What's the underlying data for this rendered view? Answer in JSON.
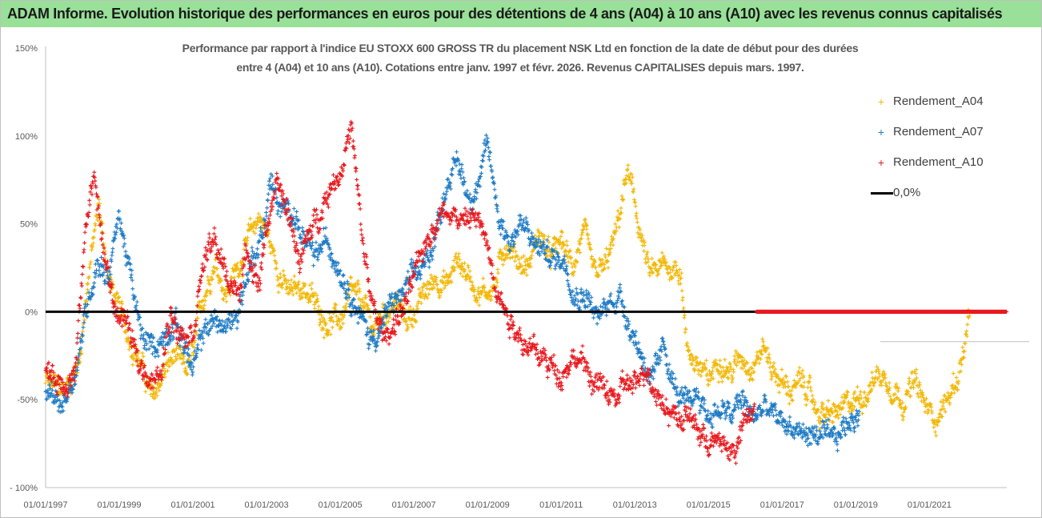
{
  "header": {
    "title": "ADAM Informe. Evolution historique des performances en euros pour des détentions de 4 ans (A04) à 10 ans (A10) avec les revenus connus capitalisés",
    "background": "#99e099"
  },
  "chart_data": {
    "type": "scatter",
    "title_line1": "Performance par rapport à l'indice EU STOXX 600 GROSS TR  du placement NSK Ltd en fonction de la date de début pour des durées",
    "title_line2": "entre 4 (A04) et 10 ans (A10). Cotations entre janv. 1997 et févr. 2026. Revenus CAPITALISES depuis mars. 1997.",
    "y_ticks": [
      "150%",
      "100%",
      "50%",
      "0%",
      "-50%",
      "- 100%"
    ],
    "y_tick_values": [
      150,
      100,
      50,
      0,
      -50,
      -100
    ],
    "ylim": [
      -100,
      150
    ],
    "x_ticks": [
      "01/01/1997",
      "01/01/1999",
      "01/01/2001",
      "01/01/2003",
      "01/01/2005",
      "01/01/2007",
      "01/01/2009",
      "01/01/2011",
      "01/01/2013",
      "01/01/2015",
      "01/01/2017",
      "01/01/2019",
      "01/01/2021"
    ],
    "x_tick_values": [
      1997,
      1999,
      2001,
      2003,
      2005,
      2007,
      2009,
      2011,
      2013,
      2015,
      2017,
      2019,
      2021
    ],
    "xlim": [
      1997,
      2023.1
    ],
    "legend_position": "top-right",
    "series": [
      {
        "name": "Rendement_A04",
        "color": "#f2b807",
        "start": 1997.0,
        "end": 2022.1,
        "keypoints": [
          [
            1997.0,
            -40
          ],
          [
            1997.5,
            -45
          ],
          [
            1997.9,
            -30
          ],
          [
            1998.15,
            20
          ],
          [
            1998.45,
            60
          ],
          [
            1998.7,
            20
          ],
          [
            1999.0,
            0
          ],
          [
            1999.3,
            -15
          ],
          [
            1999.6,
            -30
          ],
          [
            1999.9,
            -50
          ],
          [
            2000.2,
            -35
          ],
          [
            2000.5,
            -25
          ],
          [
            2000.8,
            -35
          ],
          [
            2001.0,
            -25
          ],
          [
            2001.3,
            10
          ],
          [
            2001.6,
            30
          ],
          [
            2001.9,
            10
          ],
          [
            2002.2,
            25
          ],
          [
            2002.5,
            40
          ],
          [
            2002.8,
            55
          ],
          [
            2003.0,
            45
          ],
          [
            2003.3,
            25
          ],
          [
            2003.6,
            10
          ],
          [
            2004.0,
            15
          ],
          [
            2004.3,
            5
          ],
          [
            2004.6,
            -5
          ],
          [
            2005.0,
            -5
          ],
          [
            2005.3,
            10
          ],
          [
            2005.6,
            5
          ],
          [
            2005.9,
            -10
          ],
          [
            2006.2,
            0
          ],
          [
            2006.5,
            5
          ],
          [
            2006.8,
            -5
          ],
          [
            2007.0,
            0
          ],
          [
            2007.3,
            10
          ],
          [
            2007.6,
            20
          ],
          [
            2007.9,
            15
          ],
          [
            2008.2,
            30
          ],
          [
            2008.5,
            20
          ],
          [
            2008.8,
            10
          ],
          [
            2009.2,
            15
          ],
          [
            2009.5,
            40
          ],
          [
            2009.8,
            30
          ],
          [
            2010.1,
            25
          ],
          [
            2010.4,
            45
          ],
          [
            2010.7,
            30
          ],
          [
            2011.0,
            40
          ],
          [
            2011.3,
            25
          ],
          [
            2011.6,
            45
          ],
          [
            2011.9,
            20
          ],
          [
            2012.2,
            25
          ],
          [
            2012.5,
            45
          ],
          [
            2012.8,
            80
          ],
          [
            2013.0,
            60
          ],
          [
            2013.2,
            40
          ],
          [
            2013.4,
            20
          ],
          [
            2013.7,
            25
          ],
          [
            2014.0,
            25
          ],
          [
            2014.25,
            25
          ],
          [
            2014.4,
            -20
          ],
          [
            2014.7,
            -30
          ],
          [
            2015.0,
            -40
          ],
          [
            2015.3,
            -25
          ],
          [
            2015.6,
            -35
          ],
          [
            2015.9,
            -25
          ],
          [
            2016.2,
            -30
          ],
          [
            2016.5,
            -20
          ],
          [
            2016.8,
            -35
          ],
          [
            2017.2,
            -45
          ],
          [
            2017.6,
            -40
          ],
          [
            2017.9,
            -55
          ],
          [
            2018.3,
            -60
          ],
          [
            2018.7,
            -55
          ],
          [
            2019.0,
            -50
          ],
          [
            2019.3,
            -45
          ],
          [
            2019.6,
            -35
          ],
          [
            2019.9,
            -40
          ],
          [
            2020.3,
            -50
          ],
          [
            2020.6,
            -40
          ],
          [
            2020.9,
            -55
          ],
          [
            2021.2,
            -60
          ],
          [
            2021.5,
            -50
          ],
          [
            2021.8,
            -35
          ],
          [
            2022.1,
            -5
          ]
        ]
      },
      {
        "name": "Rendement_A07",
        "color": "#1f7bc4",
        "start": 1997.0,
        "end": 2019.1,
        "keypoints": [
          [
            1997.0,
            -45
          ],
          [
            1997.4,
            -55
          ],
          [
            1997.8,
            -35
          ],
          [
            1998.1,
            0
          ],
          [
            1998.4,
            30
          ],
          [
            1998.7,
            20
          ],
          [
            1999.0,
            55
          ],
          [
            1999.3,
            20
          ],
          [
            1999.6,
            -15
          ],
          [
            1999.9,
            -20
          ],
          [
            2000.2,
            -15
          ],
          [
            2000.5,
            -5
          ],
          [
            2000.8,
            -20
          ],
          [
            2001.0,
            -35
          ],
          [
            2001.3,
            -10
          ],
          [
            2001.6,
            -5
          ],
          [
            2001.9,
            -10
          ],
          [
            2002.2,
            0
          ],
          [
            2002.6,
            30
          ],
          [
            2002.9,
            45
          ],
          [
            2003.1,
            75
          ],
          [
            2003.4,
            55
          ],
          [
            2003.7,
            60
          ],
          [
            2004.0,
            40
          ],
          [
            2004.3,
            30
          ],
          [
            2004.6,
            40
          ],
          [
            2004.9,
            30
          ],
          [
            2005.2,
            15
          ],
          [
            2005.5,
            0
          ],
          [
            2005.8,
            -15
          ],
          [
            2006.1,
            -10
          ],
          [
            2006.4,
            5
          ],
          [
            2006.7,
            10
          ],
          [
            2007.0,
            20
          ],
          [
            2007.3,
            25
          ],
          [
            2007.6,
            45
          ],
          [
            2007.9,
            75
          ],
          [
            2008.2,
            85
          ],
          [
            2008.5,
            65
          ],
          [
            2008.8,
            75
          ],
          [
            2009.0,
            95
          ],
          [
            2009.3,
            55
          ],
          [
            2009.6,
            40
          ],
          [
            2009.9,
            50
          ],
          [
            2010.2,
            40
          ],
          [
            2010.5,
            35
          ],
          [
            2010.8,
            30
          ],
          [
            2011.1,
            30
          ],
          [
            2011.4,
            10
          ],
          [
            2011.7,
            10
          ],
          [
            2012.0,
            -5
          ],
          [
            2012.3,
            5
          ],
          [
            2012.6,
            10
          ],
          [
            2012.9,
            -10
          ],
          [
            2013.2,
            -25
          ],
          [
            2013.5,
            -40
          ],
          [
            2013.8,
            -20
          ],
          [
            2014.1,
            -45
          ],
          [
            2014.4,
            -55
          ],
          [
            2014.7,
            -45
          ],
          [
            2015.0,
            -60
          ],
          [
            2015.3,
            -55
          ],
          [
            2015.6,
            -60
          ],
          [
            2015.9,
            -50
          ],
          [
            2016.2,
            -60
          ],
          [
            2016.5,
            -55
          ],
          [
            2016.8,
            -60
          ],
          [
            2017.2,
            -65
          ],
          [
            2017.6,
            -70
          ],
          [
            2018.0,
            -70
          ],
          [
            2018.4,
            -75
          ],
          [
            2018.7,
            -65
          ],
          [
            2019.1,
            -55
          ]
        ]
      },
      {
        "name": "Rendement_A10",
        "color": "#e8191e",
        "start": 1997.0,
        "end": 2016.25,
        "keypoints": [
          [
            1997.0,
            -35
          ],
          [
            1997.4,
            -40
          ],
          [
            1997.8,
            -35
          ],
          [
            1998.1,
            50
          ],
          [
            1998.3,
            80
          ],
          [
            1998.6,
            30
          ],
          [
            1998.9,
            0
          ],
          [
            1999.2,
            -5
          ],
          [
            1999.5,
            -30
          ],
          [
            1999.8,
            -35
          ],
          [
            2000.1,
            -40
          ],
          [
            2000.4,
            0
          ],
          [
            2000.7,
            -10
          ],
          [
            2001.0,
            -10
          ],
          [
            2001.3,
            30
          ],
          [
            2001.6,
            40
          ],
          [
            2001.9,
            20
          ],
          [
            2002.2,
            10
          ],
          [
            2002.5,
            35
          ],
          [
            2002.8,
            15
          ],
          [
            2003.0,
            50
          ],
          [
            2003.3,
            70
          ],
          [
            2003.6,
            55
          ],
          [
            2003.9,
            30
          ],
          [
            2004.2,
            45
          ],
          [
            2004.5,
            60
          ],
          [
            2004.8,
            75
          ],
          [
            2005.0,
            80
          ],
          [
            2005.3,
            105
          ],
          [
            2005.6,
            40
          ],
          [
            2005.9,
            0
          ],
          [
            2006.2,
            -15
          ],
          [
            2006.5,
            -5
          ],
          [
            2006.8,
            5
          ],
          [
            2007.1,
            25
          ],
          [
            2007.4,
            45
          ],
          [
            2007.7,
            55
          ],
          [
            2008.0,
            60
          ],
          [
            2008.3,
            50
          ],
          [
            2008.6,
            55
          ],
          [
            2008.9,
            45
          ],
          [
            2009.2,
            20
          ],
          [
            2009.5,
            0
          ],
          [
            2009.8,
            -10
          ],
          [
            2010.1,
            -20
          ],
          [
            2010.4,
            -25
          ],
          [
            2010.7,
            -30
          ],
          [
            2011.0,
            -35
          ],
          [
            2011.3,
            -25
          ],
          [
            2011.6,
            -30
          ],
          [
            2011.9,
            -40
          ],
          [
            2012.2,
            -45
          ],
          [
            2012.5,
            -50
          ],
          [
            2012.8,
            -40
          ],
          [
            2013.0,
            -45
          ],
          [
            2013.3,
            -30
          ],
          [
            2013.6,
            -45
          ],
          [
            2013.9,
            -55
          ],
          [
            2014.2,
            -60
          ],
          [
            2014.5,
            -60
          ],
          [
            2014.8,
            -70
          ],
          [
            2015.1,
            -75
          ],
          [
            2015.4,
            -75
          ],
          [
            2015.7,
            -80
          ],
          [
            2015.95,
            -65
          ],
          [
            2016.25,
            -55
          ]
        ]
      },
      {
        "name": "0,0%",
        "color": "#000000",
        "type": "line",
        "value": 0
      }
    ],
    "flat_zero_series": {
      "name": "Rendement_A10 (0%)",
      "color": "#e8191e",
      "start": 2016.3,
      "end": 2023.1,
      "value": 0
    }
  },
  "legend": [
    {
      "label": "Rendement_A04",
      "marker": "+",
      "color": "#f2b807"
    },
    {
      "label": "Rendement_A07",
      "marker": "+",
      "color": "#1f7bc4"
    },
    {
      "label": "Rendement_A10",
      "marker": "+",
      "color": "#e8191e"
    },
    {
      "label": "0,0%",
      "marker": "line",
      "color": "#000000"
    }
  ]
}
